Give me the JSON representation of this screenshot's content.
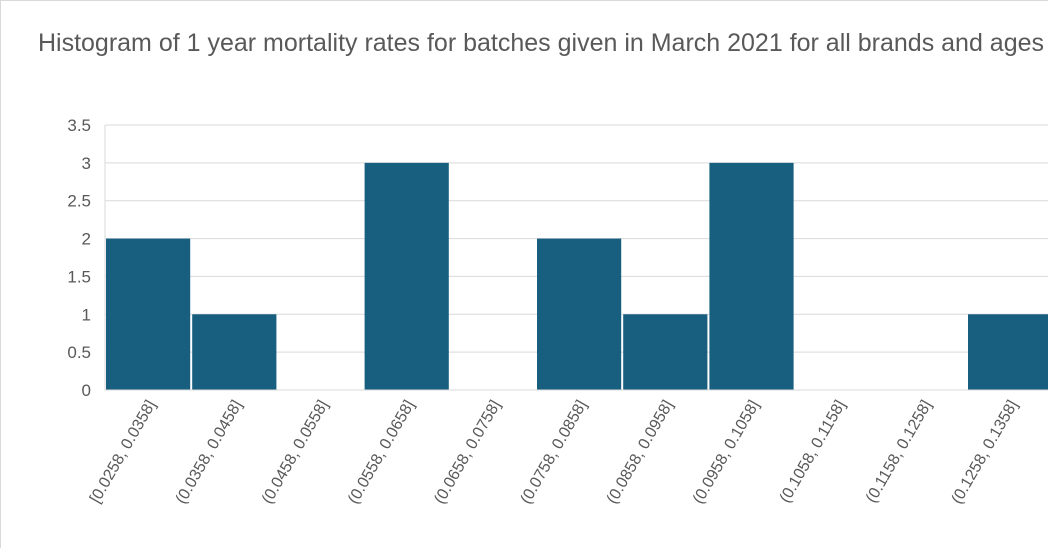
{
  "chart_data": {
    "type": "bar",
    "title": "Histogram of 1 year mortality rates for batches given in March 2021 for all brands and ages",
    "categories": [
      "[0.0258, 0.0358]",
      "(0.0358, 0.0458]",
      "(0.0458, 0.0558]",
      "(0.0558, 0.0658]",
      "(0.0658, 0.0758]",
      "(0.0758, 0.0858]",
      "(0.0858, 0.0958]",
      "(0.0958, 0.1058]",
      "(0.1058, 0.1158]",
      "(0.1158, 0.1258]",
      "(0.1258, 0.1358]"
    ],
    "values": [
      2,
      1,
      0,
      3,
      0,
      2,
      1,
      3,
      0,
      0,
      1
    ],
    "ylim": [
      0,
      3.5
    ],
    "yticks": [
      0,
      0.5,
      1,
      1.5,
      2,
      2.5,
      3,
      3.5
    ],
    "ytick_labels": [
      "0",
      "0.5",
      "1",
      "1.5",
      "2",
      "2.5",
      "3",
      "3.5"
    ],
    "grid": true,
    "legend": "none",
    "xlabel": "",
    "ylabel": "",
    "bar_color": "#175E7F",
    "grid_color": "#d9d9d9",
    "text_color": "#595959"
  }
}
